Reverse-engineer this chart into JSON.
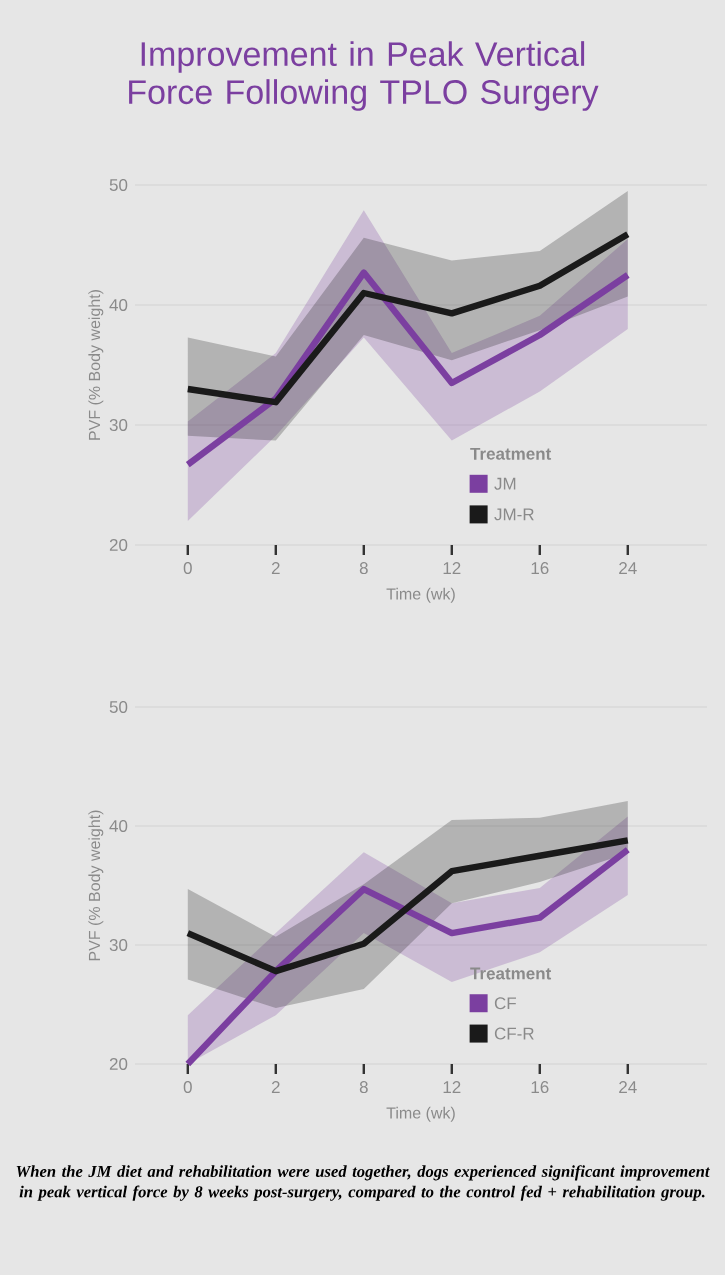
{
  "chart_data": [
    {
      "type": "line",
      "title": "Improvement in Peak Vertical Force Following TPLO Surgery",
      "categories": [
        "0",
        "2",
        "8",
        "12",
        "16",
        "24"
      ],
      "xlabel": "Time (wk)",
      "ylabel": "PVF (% Body weight)",
      "ylim": [
        20,
        50
      ],
      "yticks": [
        20,
        30,
        40,
        50
      ],
      "grid": "y",
      "legend": "bottom right",
      "legend_title": "Treatment",
      "series": [
        {
          "name": "JM",
          "color": "#7b3fa0",
          "values": [
            26.7,
            32.2,
            42.7,
            33.5,
            37.5,
            42.5
          ],
          "lower": [
            22.0,
            29.1,
            37.3,
            28.7,
            32.8,
            38.0
          ],
          "upper": [
            30.3,
            36.0,
            47.9,
            36.0,
            39.1,
            45.5
          ]
        },
        {
          "name": "JM-R",
          "color": "#1a1a1a",
          "values": [
            33.0,
            31.9,
            41.0,
            39.3,
            41.6,
            45.9
          ],
          "lower": [
            29.1,
            28.7,
            37.5,
            35.4,
            37.9,
            40.7
          ],
          "upper": [
            37.3,
            35.7,
            45.6,
            43.7,
            44.5,
            49.5
          ]
        }
      ]
    },
    {
      "type": "line",
      "categories": [
        "0",
        "2",
        "8",
        "12",
        "16",
        "24"
      ],
      "xlabel": "Time (wk)",
      "ylabel": "PVF (% Body weight)",
      "ylim": [
        20,
        50
      ],
      "yticks": [
        20,
        30,
        40,
        50
      ],
      "grid": "y",
      "legend": "bottom right",
      "legend_title": "Treatment",
      "annotations": [
        "When the JM diet and rehabilitation were used together, dogs experienced significant improvement in peak vertical force by 8 weeks post-surgery, compared to the control fed + rehabilitation group."
      ],
      "series": [
        {
          "name": "CF",
          "color": "#7b3fa0",
          "values": [
            20.0,
            27.8,
            34.7,
            31.0,
            32.3,
            38.0
          ],
          "lower": [
            20.0,
            24.1,
            31.0,
            26.9,
            29.4,
            34.2
          ],
          "upper": [
            24.1,
            31.0,
            37.8,
            33.5,
            34.8,
            40.8
          ]
        },
        {
          "name": "CF-R",
          "color": "#1a1a1a",
          "values": [
            31.0,
            27.8,
            30.1,
            36.2,
            37.5,
            38.8
          ],
          "lower": [
            27.1,
            24.7,
            26.3,
            33.5,
            35.3,
            37.7
          ],
          "upper": [
            34.7,
            30.7,
            35.1,
            40.5,
            40.7,
            42.1
          ]
        }
      ]
    }
  ]
}
